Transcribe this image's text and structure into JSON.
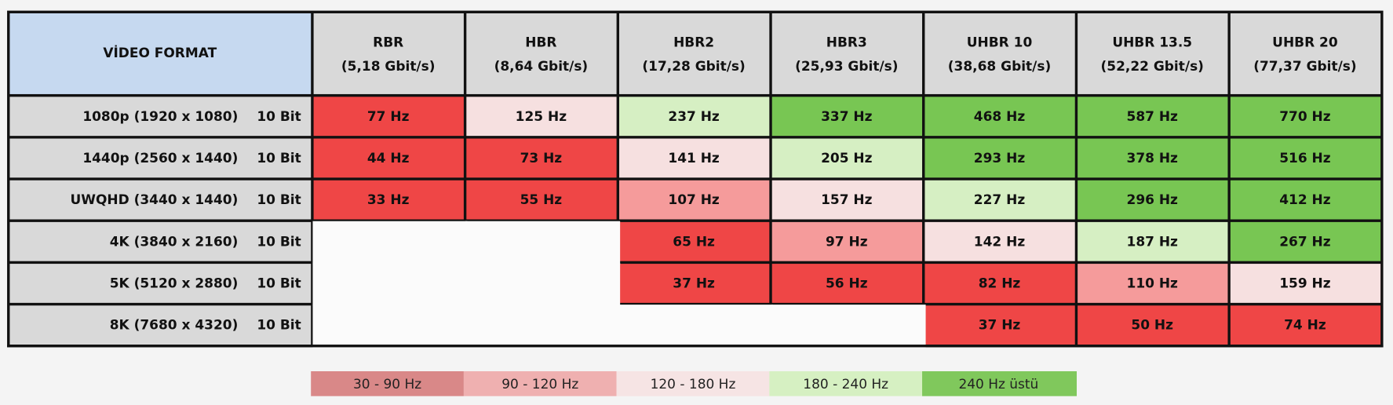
{
  "table": {
    "header": {
      "corner": "VİDEO FORMAT",
      "corner_color": "#c6d9f0",
      "columns": [
        {
          "name": "RBR",
          "rate": "(5,18 Gbit/s)"
        },
        {
          "name": "HBR",
          "rate": "(8,64 Gbit/s)"
        },
        {
          "name": "HBR2",
          "rate": "(17,28 Gbit/s)"
        },
        {
          "name": "HBR3",
          "rate": "(25,93 Gbit/s)"
        },
        {
          "name": "UHBR 10",
          "rate": "(38,68 Gbit/s)"
        },
        {
          "name": "UHBR 13.5",
          "rate": "(52,22 Gbit/s)"
        },
        {
          "name": "UHBR 20",
          "rate": "(77,37 Gbit/s)"
        }
      ]
    },
    "rows": [
      {
        "label": "1080p (1920 x 1080)",
        "depth": "10 Bit",
        "cells": [
          "77 Hz",
          "125 Hz",
          "237 Hz",
          "337 Hz",
          "468 Hz",
          "587 Hz",
          "770 Hz"
        ],
        "colors": [
          "#ef4646",
          "#f6e0e0",
          "#d6efc3",
          "#78c653",
          "#78c653",
          "#78c653",
          "#78c653"
        ]
      },
      {
        "label": "1440p (2560 x 1440)",
        "depth": "10 Bit",
        "cells": [
          "44 Hz",
          "73 Hz",
          "141 Hz",
          "205 Hz",
          "293 Hz",
          "378 Hz",
          "516 Hz"
        ],
        "colors": [
          "#ef4646",
          "#ef4646",
          "#f6e0e0",
          "#d6efc3",
          "#78c653",
          "#78c653",
          "#78c653"
        ]
      },
      {
        "label": "UWQHD (3440 x 1440)",
        "depth": "10 Bit",
        "cells": [
          "33 Hz",
          "55 Hz",
          "107 Hz",
          "157 Hz",
          "227 Hz",
          "296 Hz",
          "412 Hz"
        ],
        "colors": [
          "#ef4646",
          "#ef4646",
          "#f59b9b",
          "#f6e0e0",
          "#d6efc3",
          "#78c653",
          "#78c653"
        ]
      },
      {
        "label": "4K (3840 x 2160)",
        "depth": "10 Bit",
        "cells": [
          null,
          null,
          "65 Hz",
          "97 Hz",
          "142 Hz",
          "187 Hz",
          "267 Hz"
        ],
        "colors": [
          null,
          null,
          "#ef4646",
          "#f59b9b",
          "#f6e0e0",
          "#d6efc3",
          "#78c653"
        ]
      },
      {
        "label": "5K (5120 x 2880)",
        "depth": "10 Bit",
        "cells": [
          null,
          null,
          "37 Hz",
          "56 Hz",
          "82 Hz",
          "110 Hz",
          "159 Hz"
        ],
        "colors": [
          null,
          null,
          "#ef4646",
          "#ef4646",
          "#ef4646",
          "#f59b9b",
          "#f6e0e0"
        ]
      },
      {
        "label": "8K (7680 x 4320)",
        "depth": "10 Bit",
        "cells": [
          null,
          null,
          null,
          null,
          "37 Hz",
          "50 Hz",
          "74 Hz"
        ],
        "colors": [
          null,
          null,
          null,
          null,
          "#ef4646",
          "#ef4646",
          "#ef4646"
        ]
      }
    ]
  },
  "legend": [
    {
      "label": "30 - 90 Hz",
      "color": "#d98888"
    },
    {
      "label": "90 - 120 Hz",
      "color": "#efb0b0"
    },
    {
      "label": "120 - 180 Hz",
      "color": "#f6e4e4"
    },
    {
      "label": "180 - 240 Hz",
      "color": "#d6f0c2"
    },
    {
      "label": "240 Hz üstü",
      "color": "#80c85c"
    }
  ]
}
